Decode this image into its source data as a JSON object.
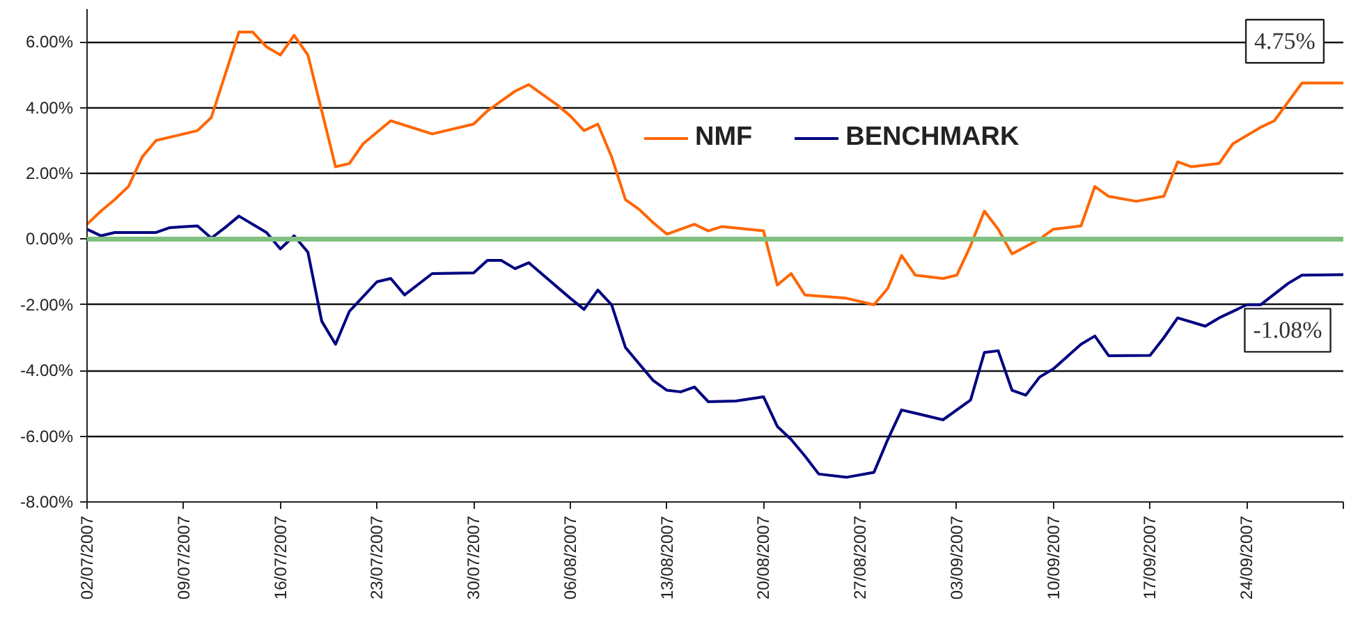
{
  "chart_data": {
    "type": "line",
    "xlim": [
      "2007-07-02",
      "2007-10-01"
    ],
    "xticks": [
      {
        "value": "2007-07-02",
        "label": "02/07/2007"
      },
      {
        "value": "2007-07-09",
        "label": "09/07/2007"
      },
      {
        "value": "2007-07-16",
        "label": "16/07/2007"
      },
      {
        "value": "2007-07-23",
        "label": "23/07/2007"
      },
      {
        "value": "2007-07-30",
        "label": "30/07/2007"
      },
      {
        "value": "2007-08-06",
        "label": "06/08/2007"
      },
      {
        "value": "2007-08-13",
        "label": "13/08/2007"
      },
      {
        "value": "2007-08-20",
        "label": "20/08/2007"
      },
      {
        "value": "2007-08-27",
        "label": "27/08/2007"
      },
      {
        "value": "2007-09-03",
        "label": "03/09/2007"
      },
      {
        "value": "2007-09-10",
        "label": "10/09/2007"
      },
      {
        "value": "2007-09-17",
        "label": "17/09/2007"
      },
      {
        "value": "2007-09-24",
        "label": "24/09/2007"
      },
      {
        "value": "2007-10-01",
        "label": null
      }
    ],
    "ylim": [
      -8,
      7
    ],
    "yticks": [
      {
        "value": -8,
        "label": "-8.00%"
      },
      {
        "value": -6,
        "label": "-6.00%"
      },
      {
        "value": -4,
        "label": "-4.00%"
      },
      {
        "value": -2,
        "label": "-2.00%"
      },
      {
        "value": 0,
        "label": "0.00%"
      },
      {
        "value": 2,
        "label": "2.00%"
      },
      {
        "value": 4,
        "label": "4.00%"
      },
      {
        "value": 6,
        "label": "6.00%"
      }
    ],
    "grid": "y",
    "legend": "top",
    "marker": "none",
    "line_style": "solid",
    "ref_lines": [
      {
        "axis": "y",
        "value": 0,
        "label": null,
        "color": "#80c080"
      }
    ],
    "annotations": [
      {
        "text": "4.75%",
        "x": "2007-10-01",
        "y": 4.75
      },
      {
        "text": "-1.08%",
        "x": "2007-10-01",
        "y": -1.08
      }
    ],
    "series": [
      {
        "name": "NMF",
        "color": "#ff6600",
        "x": [
          "2007-07-02",
          "2007-07-03",
          "2007-07-04",
          "2007-07-05",
          "2007-07-06",
          "2007-07-07",
          "2007-07-10",
          "2007-07-11",
          "2007-07-12",
          "2007-07-13",
          "2007-07-14",
          "2007-07-15",
          "2007-07-16",
          "2007-07-17",
          "2007-07-18",
          "2007-07-19",
          "2007-07-20",
          "2007-07-21",
          "2007-07-22",
          "2007-07-24",
          "2007-07-27",
          "2007-07-30",
          "2007-07-31",
          "2007-08-01",
          "2007-08-02",
          "2007-08-03",
          "2007-08-05",
          "2007-08-06",
          "2007-08-07",
          "2007-08-08",
          "2007-08-09",
          "2007-08-10",
          "2007-08-11",
          "2007-08-12",
          "2007-08-13",
          "2007-08-15",
          "2007-08-16",
          "2007-08-17",
          "2007-08-20",
          "2007-08-21",
          "2007-08-22",
          "2007-08-23",
          "2007-08-26",
          "2007-08-28",
          "2007-08-29",
          "2007-08-30",
          "2007-08-31",
          "2007-09-02",
          "2007-09-03",
          "2007-09-04",
          "2007-09-05",
          "2007-09-06",
          "2007-09-07",
          "2007-09-09",
          "2007-09-10",
          "2007-09-12",
          "2007-09-13",
          "2007-09-14",
          "2007-09-16",
          "2007-09-18",
          "2007-09-19",
          "2007-09-20",
          "2007-09-22",
          "2007-09-23",
          "2007-09-25",
          "2007-09-26",
          "2007-09-28",
          "2007-10-01"
        ],
        "values": [
          0.45,
          0.85,
          1.2,
          1.6,
          2.5,
          3.0,
          3.3,
          3.7,
          5.0,
          6.3,
          6.3,
          5.85,
          5.6,
          6.2,
          5.6,
          3.9,
          2.2,
          2.3,
          2.9,
          3.6,
          3.2,
          3.5,
          3.9,
          4.2,
          4.5,
          4.7,
          4.1,
          3.75,
          3.3,
          3.5,
          2.5,
          1.2,
          0.9,
          0.5,
          0.15,
          0.45,
          0.25,
          0.38,
          0.25,
          -1.4,
          -1.05,
          -1.7,
          -1.8,
          -2.0,
          -1.5,
          -0.5,
          -1.1,
          -1.2,
          -1.1,
          -0.2,
          0.85,
          0.3,
          -0.45,
          0.0,
          0.3,
          0.4,
          1.6,
          1.3,
          1.15,
          1.3,
          2.35,
          2.2,
          2.3,
          2.9,
          3.4,
          3.6,
          4.75,
          4.75
        ]
      },
      {
        "name": "BENCHMARK",
        "color": "#000080",
        "x": [
          "2007-07-02",
          "2007-07-03",
          "2007-07-04",
          "2007-07-07",
          "2007-07-08",
          "2007-07-10",
          "2007-07-11",
          "2007-07-12",
          "2007-07-13",
          "2007-07-15",
          "2007-07-16",
          "2007-07-17",
          "2007-07-18",
          "2007-07-19",
          "2007-07-20",
          "2007-07-21",
          "2007-07-23",
          "2007-07-24",
          "2007-07-25",
          "2007-07-27",
          "2007-07-30",
          "2007-07-31",
          "2007-08-01",
          "2007-08-02",
          "2007-08-03",
          "2007-08-06",
          "2007-08-07",
          "2007-08-08",
          "2007-08-09",
          "2007-08-10",
          "2007-08-12",
          "2007-08-13",
          "2007-08-14",
          "2007-08-15",
          "2007-08-16",
          "2007-08-18",
          "2007-08-20",
          "2007-08-21",
          "2007-08-22",
          "2007-08-23",
          "2007-08-24",
          "2007-08-26",
          "2007-08-28",
          "2007-08-29",
          "2007-08-30",
          "2007-08-31",
          "2007-09-02",
          "2007-09-04",
          "2007-09-05",
          "2007-09-06",
          "2007-09-07",
          "2007-09-08",
          "2007-09-09",
          "2007-09-10",
          "2007-09-12",
          "2007-09-13",
          "2007-09-14",
          "2007-09-17",
          "2007-09-18",
          "2007-09-19",
          "2007-09-21",
          "2007-09-22",
          "2007-09-24",
          "2007-09-25",
          "2007-09-27",
          "2007-09-28",
          "2007-10-01"
        ],
        "values": [
          0.3,
          0.1,
          0.2,
          0.2,
          0.35,
          0.4,
          0.03,
          0.35,
          0.7,
          0.2,
          -0.3,
          0.1,
          -0.4,
          -2.5,
          -3.2,
          -2.2,
          -1.3,
          -1.2,
          -1.7,
          -1.05,
          -1.03,
          -0.65,
          -0.65,
          -0.9,
          -0.72,
          -1.8,
          -2.14,
          -1.55,
          -2.0,
          -3.3,
          -4.3,
          -4.6,
          -4.65,
          -4.5,
          -4.95,
          -4.93,
          -4.8,
          -5.7,
          -6.1,
          -6.6,
          -7.15,
          -7.25,
          -7.1,
          -6.1,
          -5.2,
          -5.3,
          -5.5,
          -4.9,
          -3.45,
          -3.4,
          -4.6,
          -4.75,
          -4.2,
          -3.95,
          -3.2,
          -2.95,
          -3.55,
          -3.54,
          -3.0,
          -2.4,
          -2.65,
          -2.4,
          -2.0,
          -2.0,
          -1.35,
          -1.1,
          -1.08
        ]
      }
    ]
  }
}
